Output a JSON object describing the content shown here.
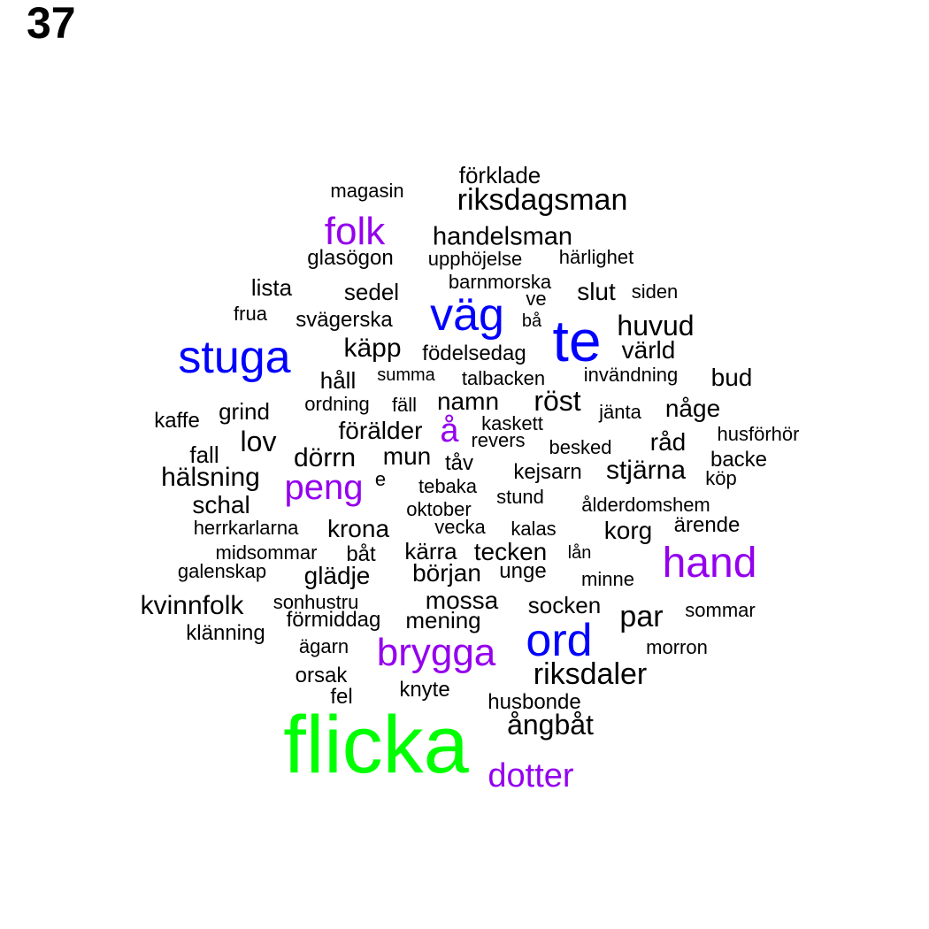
{
  "panel_number": "37",
  "colors": {
    "black": "#000000",
    "blue": "#0000ff",
    "purple": "#9400ee",
    "green": "#00ff00"
  },
  "words": [
    {
      "text": "flicka",
      "color": "green"
    },
    {
      "text": "te",
      "color": "blue"
    },
    {
      "text": "stuga",
      "color": "blue"
    },
    {
      "text": "väg",
      "color": "blue"
    },
    {
      "text": "ord",
      "color": "blue"
    },
    {
      "text": "hand",
      "color": "purple"
    },
    {
      "text": "brygga",
      "color": "purple"
    },
    {
      "text": "folk",
      "color": "purple"
    },
    {
      "text": "peng",
      "color": "purple"
    },
    {
      "text": "dotter",
      "color": "purple"
    },
    {
      "text": "å",
      "color": "purple"
    },
    {
      "text": "riksdagsman",
      "color": "black"
    },
    {
      "text": "riksdaler",
      "color": "black"
    },
    {
      "text": "handelsman",
      "color": "black"
    },
    {
      "text": "huvud",
      "color": "black"
    },
    {
      "text": "ångbåt",
      "color": "black"
    },
    {
      "text": "förklade",
      "color": "black"
    },
    {
      "text": "magasin",
      "color": "black"
    },
    {
      "text": "glasögon",
      "color": "black"
    },
    {
      "text": "upphöjelse",
      "color": "black"
    },
    {
      "text": "härlighet",
      "color": "black"
    },
    {
      "text": "lista",
      "color": "black"
    },
    {
      "text": "sedel",
      "color": "black"
    },
    {
      "text": "barnmorska",
      "color": "black"
    },
    {
      "text": "slut",
      "color": "black"
    },
    {
      "text": "siden",
      "color": "black"
    },
    {
      "text": "ve",
      "color": "black"
    },
    {
      "text": "frua",
      "color": "black"
    },
    {
      "text": "svägerska",
      "color": "black"
    },
    {
      "text": "bå",
      "color": "black"
    },
    {
      "text": "käpp",
      "color": "black"
    },
    {
      "text": "födelsedag",
      "color": "black"
    },
    {
      "text": "värld",
      "color": "black"
    },
    {
      "text": "håll",
      "color": "black"
    },
    {
      "text": "summa",
      "color": "black"
    },
    {
      "text": "talbacken",
      "color": "black"
    },
    {
      "text": "invändning",
      "color": "black"
    },
    {
      "text": "bud",
      "color": "black"
    },
    {
      "text": "kaffe",
      "color": "black"
    },
    {
      "text": "grind",
      "color": "black"
    },
    {
      "text": "ordning",
      "color": "black"
    },
    {
      "text": "fäll",
      "color": "black"
    },
    {
      "text": "namn",
      "color": "black"
    },
    {
      "text": "röst",
      "color": "black"
    },
    {
      "text": "jänta",
      "color": "black"
    },
    {
      "text": "någe",
      "color": "black"
    },
    {
      "text": "lov",
      "color": "black"
    },
    {
      "text": "förälder",
      "color": "black"
    },
    {
      "text": "kaskett",
      "color": "black"
    },
    {
      "text": "revers",
      "color": "black"
    },
    {
      "text": "besked",
      "color": "black"
    },
    {
      "text": "råd",
      "color": "black"
    },
    {
      "text": "husförhör",
      "color": "black"
    },
    {
      "text": "fall",
      "color": "black"
    },
    {
      "text": "dörrn",
      "color": "black"
    },
    {
      "text": "mun",
      "color": "black"
    },
    {
      "text": "tåv",
      "color": "black"
    },
    {
      "text": "kejsarn",
      "color": "black"
    },
    {
      "text": "stjärna",
      "color": "black"
    },
    {
      "text": "backe",
      "color": "black"
    },
    {
      "text": "hälsning",
      "color": "black"
    },
    {
      "text": "e",
      "color": "black"
    },
    {
      "text": "tebaka",
      "color": "black"
    },
    {
      "text": "köp",
      "color": "black"
    },
    {
      "text": "schal",
      "color": "black"
    },
    {
      "text": "stund",
      "color": "black"
    },
    {
      "text": "oktober",
      "color": "black"
    },
    {
      "text": "ålderdomshem",
      "color": "black"
    },
    {
      "text": "herrkarlarna",
      "color": "black"
    },
    {
      "text": "krona",
      "color": "black"
    },
    {
      "text": "vecka",
      "color": "black"
    },
    {
      "text": "kalas",
      "color": "black"
    },
    {
      "text": "korg",
      "color": "black"
    },
    {
      "text": "ärende",
      "color": "black"
    },
    {
      "text": "midsommar",
      "color": "black"
    },
    {
      "text": "båt",
      "color": "black"
    },
    {
      "text": "kärra",
      "color": "black"
    },
    {
      "text": "tecken",
      "color": "black"
    },
    {
      "text": "lån",
      "color": "black"
    },
    {
      "text": "galenskap",
      "color": "black"
    },
    {
      "text": "glädje",
      "color": "black"
    },
    {
      "text": "början",
      "color": "black"
    },
    {
      "text": "unge",
      "color": "black"
    },
    {
      "text": "minne",
      "color": "black"
    },
    {
      "text": "kvinnfolk",
      "color": "black"
    },
    {
      "text": "sonhustru",
      "color": "black"
    },
    {
      "text": "mossa",
      "color": "black"
    },
    {
      "text": "socken",
      "color": "black"
    },
    {
      "text": "sommar",
      "color": "black"
    },
    {
      "text": "förmiddag",
      "color": "black"
    },
    {
      "text": "mening",
      "color": "black"
    },
    {
      "text": "par",
      "color": "black"
    },
    {
      "text": "klänning",
      "color": "black"
    },
    {
      "text": "ägarn",
      "color": "black"
    },
    {
      "text": "morron",
      "color": "black"
    },
    {
      "text": "orsak",
      "color": "black"
    },
    {
      "text": "knyte",
      "color": "black"
    },
    {
      "text": "fel",
      "color": "black"
    },
    {
      "text": "husbonde",
      "color": "black"
    }
  ]
}
